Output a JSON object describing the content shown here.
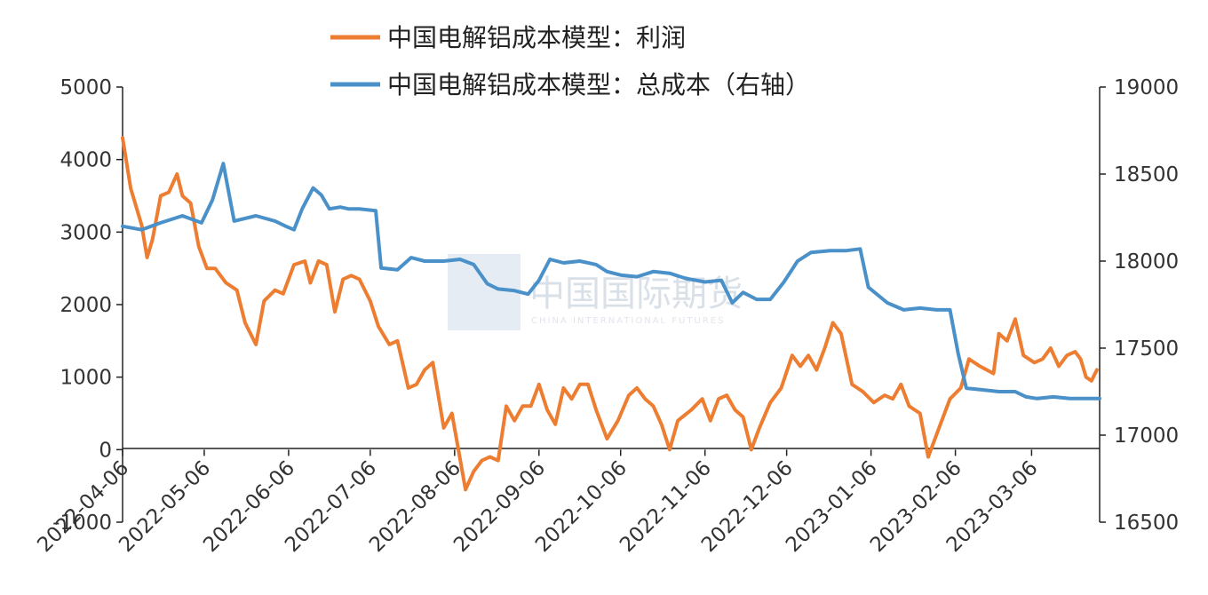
{
  "chart_data": {
    "type": "line",
    "title": "",
    "xlabel": "",
    "ylabel_left": "",
    "ylabel_right": "",
    "x_start": "2022-04-06",
    "x_end": "2023-03-31",
    "x_ticks": [
      "2022-04-06",
      "2022-05-06",
      "2022-06-06",
      "2022-07-06",
      "2022-08-06",
      "2022-09-06",
      "2022-10-06",
      "2022-11-06",
      "2022-12-06",
      "2023-01-06",
      "2023-02-06",
      "2023-03-06"
    ],
    "y_left_ticks": [
      -1000,
      0,
      1000,
      2000,
      3000,
      4000,
      5000
    ],
    "y_left_range": [
      -1000,
      5000
    ],
    "y_right_ticks": [
      16500,
      17000,
      17500,
      18000,
      18500,
      19000
    ],
    "y_right_range": [
      16500,
      19000
    ],
    "grid": false,
    "legend_position": "top-center",
    "series": [
      {
        "name": "中国电解铝成本模型：利润",
        "axis": "left",
        "color": "#ed7d31",
        "points": [
          [
            "2022-04-06",
            4300
          ],
          [
            "2022-04-09",
            3600
          ],
          [
            "2022-04-13",
            3100
          ],
          [
            "2022-04-15",
            2650
          ],
          [
            "2022-04-17",
            2900
          ],
          [
            "2022-04-20",
            3500
          ],
          [
            "2022-04-23",
            3550
          ],
          [
            "2022-04-26",
            3800
          ],
          [
            "2022-04-28",
            3500
          ],
          [
            "2022-05-01",
            3400
          ],
          [
            "2022-05-04",
            2800
          ],
          [
            "2022-05-07",
            2500
          ],
          [
            "2022-05-10",
            2500
          ],
          [
            "2022-05-14",
            2300
          ],
          [
            "2022-05-18",
            2200
          ],
          [
            "2022-05-21",
            1750
          ],
          [
            "2022-05-25",
            1450
          ],
          [
            "2022-05-28",
            2050
          ],
          [
            "2022-06-01",
            2200
          ],
          [
            "2022-06-04",
            2150
          ],
          [
            "2022-06-08",
            2550
          ],
          [
            "2022-06-12",
            2600
          ],
          [
            "2022-06-14",
            2300
          ],
          [
            "2022-06-17",
            2600
          ],
          [
            "2022-06-20",
            2550
          ],
          [
            "2022-06-23",
            1900
          ],
          [
            "2022-06-26",
            2350
          ],
          [
            "2022-06-29",
            2400
          ],
          [
            "2022-07-02",
            2350
          ],
          [
            "2022-07-06",
            2050
          ],
          [
            "2022-07-09",
            1700
          ],
          [
            "2022-07-13",
            1450
          ],
          [
            "2022-07-16",
            1500
          ],
          [
            "2022-07-20",
            850
          ],
          [
            "2022-07-23",
            900
          ],
          [
            "2022-07-26",
            1100
          ],
          [
            "2022-07-29",
            1200
          ],
          [
            "2022-08-02",
            300
          ],
          [
            "2022-08-05",
            500
          ],
          [
            "2022-08-10",
            -550
          ],
          [
            "2022-08-13",
            -300
          ],
          [
            "2022-08-16",
            -150
          ],
          [
            "2022-08-19",
            -100
          ],
          [
            "2022-08-22",
            -150
          ],
          [
            "2022-08-25",
            600
          ],
          [
            "2022-08-28",
            400
          ],
          [
            "2022-08-31",
            600
          ],
          [
            "2022-09-03",
            600
          ],
          [
            "2022-09-06",
            900
          ],
          [
            "2022-09-09",
            550
          ],
          [
            "2022-09-12",
            350
          ],
          [
            "2022-09-15",
            850
          ],
          [
            "2022-09-18",
            700
          ],
          [
            "2022-09-21",
            900
          ],
          [
            "2022-09-24",
            900
          ],
          [
            "2022-09-27",
            550
          ],
          [
            "2022-10-01",
            150
          ],
          [
            "2022-10-05",
            400
          ],
          [
            "2022-10-09",
            750
          ],
          [
            "2022-10-12",
            850
          ],
          [
            "2022-10-15",
            700
          ],
          [
            "2022-10-18",
            600
          ],
          [
            "2022-10-21",
            350
          ],
          [
            "2022-10-24",
            0
          ],
          [
            "2022-10-27",
            400
          ],
          [
            "2022-11-01",
            550
          ],
          [
            "2022-11-05",
            700
          ],
          [
            "2022-11-08",
            400
          ],
          [
            "2022-11-11",
            700
          ],
          [
            "2022-11-14",
            750
          ],
          [
            "2022-11-17",
            550
          ],
          [
            "2022-11-20",
            450
          ],
          [
            "2022-11-23",
            0
          ],
          [
            "2022-11-26",
            300
          ],
          [
            "2022-11-30",
            650
          ],
          [
            "2022-12-04",
            850
          ],
          [
            "2022-12-08",
            1300
          ],
          [
            "2022-12-11",
            1150
          ],
          [
            "2022-12-14",
            1300
          ],
          [
            "2022-12-17",
            1100
          ],
          [
            "2022-12-20",
            1400
          ],
          [
            "2022-12-23",
            1750
          ],
          [
            "2022-12-26",
            1600
          ],
          [
            "2022-12-30",
            900
          ],
          [
            "2023-01-03",
            800
          ],
          [
            "2023-01-07",
            650
          ],
          [
            "2023-01-11",
            750
          ],
          [
            "2023-01-14",
            700
          ],
          [
            "2023-01-17",
            900
          ],
          [
            "2023-01-20",
            600
          ],
          [
            "2023-01-24",
            500
          ],
          [
            "2023-01-27",
            -100
          ],
          [
            "2023-01-31",
            300
          ],
          [
            "2023-02-04",
            700
          ],
          [
            "2023-02-08",
            850
          ],
          [
            "2023-02-11",
            1250
          ],
          [
            "2023-02-15",
            1150
          ],
          [
            "2023-02-20",
            1050
          ],
          [
            "2023-02-22",
            1600
          ],
          [
            "2023-02-25",
            1500
          ],
          [
            "2023-02-28",
            1800
          ],
          [
            "2023-03-03",
            1300
          ],
          [
            "2023-03-07",
            1200
          ],
          [
            "2023-03-10",
            1250
          ],
          [
            "2023-03-13",
            1400
          ],
          [
            "2023-03-16",
            1150
          ],
          [
            "2023-03-19",
            1300
          ],
          [
            "2023-03-22",
            1350
          ],
          [
            "2023-03-24",
            1250
          ],
          [
            "2023-03-26",
            1000
          ],
          [
            "2023-03-28",
            950
          ],
          [
            "2023-03-30",
            1100
          ]
        ]
      },
      {
        "name": "中国电解铝成本模型：总成本（右轴）",
        "axis": "right",
        "color": "#4a90c9",
        "points": [
          [
            "2022-04-06",
            18200
          ],
          [
            "2022-04-13",
            18180
          ],
          [
            "2022-04-20",
            18220
          ],
          [
            "2022-04-28",
            18260
          ],
          [
            "2022-05-05",
            18220
          ],
          [
            "2022-05-09",
            18350
          ],
          [
            "2022-05-13",
            18560
          ],
          [
            "2022-05-17",
            18230
          ],
          [
            "2022-05-25",
            18260
          ],
          [
            "2022-06-01",
            18230
          ],
          [
            "2022-06-05",
            18200
          ],
          [
            "2022-06-08",
            18180
          ],
          [
            "2022-06-11",
            18300
          ],
          [
            "2022-06-15",
            18420
          ],
          [
            "2022-06-18",
            18380
          ],
          [
            "2022-06-21",
            18300
          ],
          [
            "2022-06-25",
            18310
          ],
          [
            "2022-06-28",
            18300
          ],
          [
            "2022-07-02",
            18300
          ],
          [
            "2022-07-08",
            18290
          ],
          [
            "2022-07-10",
            17960
          ],
          [
            "2022-07-16",
            17950
          ],
          [
            "2022-07-21",
            18020
          ],
          [
            "2022-07-26",
            18000
          ],
          [
            "2022-08-02",
            18000
          ],
          [
            "2022-08-08",
            18010
          ],
          [
            "2022-08-13",
            17980
          ],
          [
            "2022-08-18",
            17870
          ],
          [
            "2022-08-22",
            17840
          ],
          [
            "2022-08-28",
            17830
          ],
          [
            "2022-09-02",
            17810
          ],
          [
            "2022-09-06",
            17890
          ],
          [
            "2022-09-10",
            18010
          ],
          [
            "2022-09-15",
            17990
          ],
          [
            "2022-09-21",
            18000
          ],
          [
            "2022-09-27",
            17980
          ],
          [
            "2022-10-01",
            17940
          ],
          [
            "2022-10-06",
            17920
          ],
          [
            "2022-10-12",
            17910
          ],
          [
            "2022-10-18",
            17940
          ],
          [
            "2022-10-24",
            17930
          ],
          [
            "2022-10-30",
            17900
          ],
          [
            "2022-11-06",
            17880
          ],
          [
            "2022-11-12",
            17890
          ],
          [
            "2022-11-16",
            17760
          ],
          [
            "2022-11-20",
            17820
          ],
          [
            "2022-11-25",
            17780
          ],
          [
            "2022-11-30",
            17780
          ],
          [
            "2022-12-05",
            17880
          ],
          [
            "2022-12-10",
            18000
          ],
          [
            "2022-12-15",
            18050
          ],
          [
            "2022-12-22",
            18060
          ],
          [
            "2022-12-28",
            18060
          ],
          [
            "2023-01-02",
            18070
          ],
          [
            "2023-01-05",
            17850
          ],
          [
            "2023-01-12",
            17760
          ],
          [
            "2023-01-18",
            17720
          ],
          [
            "2023-01-24",
            17730
          ],
          [
            "2023-01-30",
            17720
          ],
          [
            "2023-02-04",
            17720
          ],
          [
            "2023-02-07",
            17470
          ],
          [
            "2023-02-10",
            17270
          ],
          [
            "2023-02-16",
            17260
          ],
          [
            "2023-02-22",
            17250
          ],
          [
            "2023-02-28",
            17250
          ],
          [
            "2023-03-04",
            17220
          ],
          [
            "2023-03-08",
            17210
          ],
          [
            "2023-03-14",
            17220
          ],
          [
            "2023-03-20",
            17210
          ],
          [
            "2023-03-26",
            17210
          ],
          [
            "2023-03-31",
            17210
          ]
        ]
      }
    ]
  },
  "watermark": {
    "main": "中国国际期货",
    "sub": "CHINA INTERNATIONAL FUTURES"
  }
}
